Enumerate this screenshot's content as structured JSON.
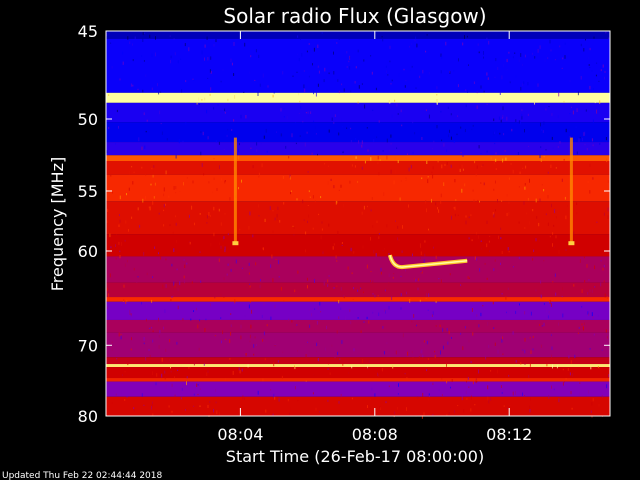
{
  "chart_data": {
    "type": "heatmap",
    "title": "Solar radio Flux (Glasgow)",
    "ylabel": "Frequency [MHz]",
    "xlabel": "Start Time (26-Feb-17 08:00:00)",
    "x_unit": "minutes after 08:00:00",
    "xlim": [
      0,
      15
    ],
    "ylim": [
      45,
      80
    ],
    "y_scale": "reciprocal",
    "y_ticks": [
      {
        "value": 45,
        "label": "45"
      },
      {
        "value": 50,
        "label": "50"
      },
      {
        "value": 55,
        "label": "55"
      },
      {
        "value": 60,
        "label": "60"
      },
      {
        "value": 70,
        "label": "70"
      },
      {
        "value": 80,
        "label": "80"
      }
    ],
    "x_ticks": [
      {
        "value": 4,
        "label": "08:04"
      },
      {
        "value": 8,
        "label": "08:08"
      },
      {
        "value": 12,
        "label": "08:12"
      }
    ],
    "colormap": [
      "#000050",
      "#0000ff",
      "#8000c0",
      "#d00000",
      "#ff3000",
      "#ffb000",
      "#ffffa0"
    ],
    "frequency_bands": [
      {
        "from": 45.0,
        "to": 45.4,
        "level": 0.1
      },
      {
        "from": 45.4,
        "to": 48.4,
        "level": 0.18
      },
      {
        "from": 48.4,
        "to": 49.0,
        "level": 1.0
      },
      {
        "from": 49.0,
        "to": 50.2,
        "level": 0.2
      },
      {
        "from": 50.2,
        "to": 51.5,
        "level": 0.15
      },
      {
        "from": 51.5,
        "to": 52.4,
        "level": 0.22
      },
      {
        "from": 52.4,
        "to": 52.8,
        "level": 0.72
      },
      {
        "from": 52.8,
        "to": 53.8,
        "level": 0.56
      },
      {
        "from": 53.8,
        "to": 55.8,
        "level": 0.64
      },
      {
        "from": 55.8,
        "to": 58.5,
        "level": 0.55
      },
      {
        "from": 58.5,
        "to": 60.5,
        "level": 0.5
      },
      {
        "from": 60.5,
        "to": 63.0,
        "level": 0.42
      },
      {
        "from": 63.0,
        "to": 64.5,
        "level": 0.45
      },
      {
        "from": 64.5,
        "to": 65.0,
        "level": 0.65
      },
      {
        "from": 65.0,
        "to": 67.0,
        "level": 0.32
      },
      {
        "from": 67.0,
        "to": 68.5,
        "level": 0.42
      },
      {
        "from": 68.5,
        "to": 71.5,
        "level": 0.4
      },
      {
        "from": 71.5,
        "to": 72.4,
        "level": 0.48
      },
      {
        "from": 72.4,
        "to": 72.8,
        "level": 0.95
      },
      {
        "from": 72.8,
        "to": 74.3,
        "level": 0.5
      },
      {
        "from": 74.3,
        "to": 74.8,
        "level": 0.62
      },
      {
        "from": 74.8,
        "to": 77.0,
        "level": 0.34
      },
      {
        "from": 77.0,
        "to": 80.0,
        "level": 0.52
      }
    ],
    "features": [
      {
        "kind": "spike",
        "time": 3.85,
        "from": 51.2,
        "to": 59.3,
        "level": 0.78
      },
      {
        "kind": "spike",
        "time": 13.85,
        "from": 51.2,
        "to": 59.3,
        "level": 0.78
      },
      {
        "kind": "burst",
        "time_start": 8.45,
        "time_end": 10.75,
        "freq_start": 61.5,
        "freq_end": 60.9,
        "level": 0.88
      }
    ]
  },
  "footer": {
    "updated_text": "Updated Thu Feb 22 02:44:44 2018"
  }
}
